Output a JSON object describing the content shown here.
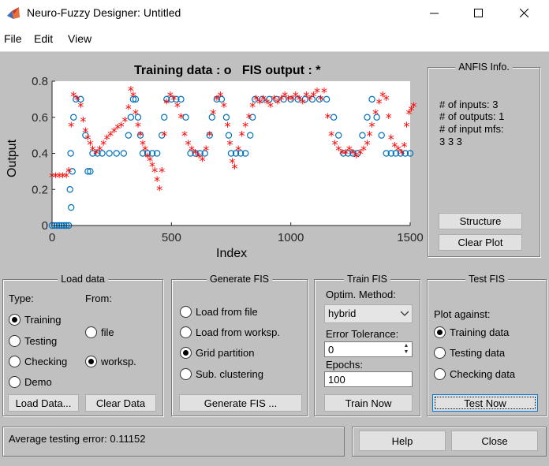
{
  "window": {
    "title": "Neuro-Fuzzy Designer: Untitled",
    "minimize": "—",
    "maximize": "☐",
    "close": "✕"
  },
  "menu": {
    "file": "File",
    "edit": "Edit",
    "view": "View"
  },
  "plot": {
    "title_training": "Training data : o",
    "title_fis": "FIS output : *",
    "xlabel": "Index",
    "ylabel": "Output"
  },
  "chart_data": {
    "type": "scatter",
    "title": "Training data : o   FIS output : *",
    "xlabel": "Index",
    "ylabel": "Output",
    "xlim": [
      0,
      1500
    ],
    "ylim": [
      0,
      0.8
    ],
    "xticks": [
      "0",
      "500",
      "1000",
      "1500"
    ],
    "yticks": [
      "0",
      "0.2",
      "0.4",
      "0.6",
      "0.8"
    ],
    "series": [
      {
        "name": "Training data",
        "marker": "o",
        "color": "#0072bd",
        "points": [
          [
            0,
            0
          ],
          [
            10,
            0
          ],
          [
            20,
            0
          ],
          [
            30,
            0
          ],
          [
            40,
            0
          ],
          [
            50,
            0
          ],
          [
            60,
            0
          ],
          [
            70,
            0
          ],
          [
            80,
            0.1
          ],
          [
            75,
            0.2
          ],
          [
            85,
            0.3
          ],
          [
            78,
            0.4
          ],
          [
            90,
            0.6
          ],
          [
            100,
            0.7
          ],
          [
            120,
            0.7
          ],
          [
            140,
            0.5
          ],
          [
            150,
            0.3
          ],
          [
            160,
            0.3
          ],
          [
            170,
            0.4
          ],
          [
            190,
            0.4
          ],
          [
            210,
            0.4
          ],
          [
            240,
            0.4
          ],
          [
            270,
            0.4
          ],
          [
            300,
            0.4
          ],
          [
            320,
            0.5
          ],
          [
            330,
            0.6
          ],
          [
            340,
            0.7
          ],
          [
            350,
            0.7
          ],
          [
            360,
            0.6
          ],
          [
            370,
            0.5
          ],
          [
            380,
            0.4
          ],
          [
            400,
            0.4
          ],
          [
            420,
            0.4
          ],
          [
            440,
            0.4
          ],
          [
            460,
            0.5
          ],
          [
            470,
            0.6
          ],
          [
            480,
            0.7
          ],
          [
            500,
            0.7
          ],
          [
            520,
            0.7
          ],
          [
            540,
            0.7
          ],
          [
            560,
            0.6
          ],
          [
            580,
            0.4
          ],
          [
            600,
            0.4
          ],
          [
            620,
            0.4
          ],
          [
            640,
            0.4
          ],
          [
            660,
            0.5
          ],
          [
            670,
            0.6
          ],
          [
            690,
            0.7
          ],
          [
            710,
            0.7
          ],
          [
            730,
            0.6
          ],
          [
            740,
            0.5
          ],
          [
            750,
            0.4
          ],
          [
            770,
            0.4
          ],
          [
            790,
            0.4
          ],
          [
            810,
            0.4
          ],
          [
            830,
            0.5
          ],
          [
            840,
            0.6
          ],
          [
            850,
            0.7
          ],
          [
            880,
            0.7
          ],
          [
            910,
            0.7
          ],
          [
            940,
            0.7
          ],
          [
            970,
            0.7
          ],
          [
            1000,
            0.7
          ],
          [
            1030,
            0.7
          ],
          [
            1060,
            0.7
          ],
          [
            1090,
            0.7
          ],
          [
            1120,
            0.7
          ],
          [
            1150,
            0.7
          ],
          [
            1180,
            0.6
          ],
          [
            1200,
            0.5
          ],
          [
            1220,
            0.4
          ],
          [
            1240,
            0.4
          ],
          [
            1260,
            0.4
          ],
          [
            1280,
            0.4
          ],
          [
            1300,
            0.5
          ],
          [
            1320,
            0.6
          ],
          [
            1340,
            0.7
          ],
          [
            1360,
            0.6
          ],
          [
            1380,
            0.5
          ],
          [
            1400,
            0.4
          ],
          [
            1420,
            0.4
          ],
          [
            1440,
            0.4
          ],
          [
            1460,
            0.4
          ],
          [
            1480,
            0.4
          ],
          [
            1500,
            0.4
          ]
        ]
      },
      {
        "name": "FIS output",
        "marker": "*",
        "color": "#ff0000",
        "points": [
          [
            0,
            0.27
          ],
          [
            15,
            0.27
          ],
          [
            30,
            0.27
          ],
          [
            45,
            0.27
          ],
          [
            60,
            0.27
          ],
          [
            70,
            0.3
          ],
          [
            80,
            0.55
          ],
          [
            90,
            0.72
          ],
          [
            105,
            0.7
          ],
          [
            120,
            0.66
          ],
          [
            130,
            0.58
          ],
          [
            140,
            0.52
          ],
          [
            150,
            0.48
          ],
          [
            160,
            0.45
          ],
          [
            170,
            0.42
          ],
          [
            185,
            0.4
          ],
          [
            200,
            0.42
          ],
          [
            215,
            0.45
          ],
          [
            230,
            0.48
          ],
          [
            245,
            0.5
          ],
          [
            260,
            0.52
          ],
          [
            275,
            0.54
          ],
          [
            290,
            0.55
          ],
          [
            305,
            0.58
          ],
          [
            320,
            0.65
          ],
          [
            330,
            0.75
          ],
          [
            340,
            0.72
          ],
          [
            350,
            0.62
          ],
          [
            360,
            0.55
          ],
          [
            370,
            0.5
          ],
          [
            380,
            0.45
          ],
          [
            390,
            0.42
          ],
          [
            400,
            0.38
          ],
          [
            410,
            0.36
          ],
          [
            420,
            0.33
          ],
          [
            430,
            0.3
          ],
          [
            440,
            0.25
          ],
          [
            450,
            0.2
          ],
          [
            460,
            0.3
          ],
          [
            470,
            0.5
          ],
          [
            480,
            0.68
          ],
          [
            495,
            0.72
          ],
          [
            510,
            0.7
          ],
          [
            525,
            0.66
          ],
          [
            540,
            0.6
          ],
          [
            555,
            0.5
          ],
          [
            570,
            0.45
          ],
          [
            585,
            0.42
          ],
          [
            600,
            0.4
          ],
          [
            615,
            0.38
          ],
          [
            630,
            0.36
          ],
          [
            645,
            0.42
          ],
          [
            660,
            0.5
          ],
          [
            675,
            0.62
          ],
          [
            690,
            0.7
          ],
          [
            705,
            0.72
          ],
          [
            720,
            0.66
          ],
          [
            735,
            0.55
          ],
          [
            745,
            0.45
          ],
          [
            755,
            0.35
          ],
          [
            765,
            0.32
          ],
          [
            780,
            0.42
          ],
          [
            795,
            0.5
          ],
          [
            810,
            0.55
          ],
          [
            825,
            0.6
          ],
          [
            840,
            0.66
          ],
          [
            855,
            0.7
          ],
          [
            870,
            0.68
          ],
          [
            885,
            0.7
          ],
          [
            900,
            0.68
          ],
          [
            915,
            0.66
          ],
          [
            930,
            0.7
          ],
          [
            945,
            0.68
          ],
          [
            960,
            0.7
          ],
          [
            975,
            0.72
          ],
          [
            990,
            0.7
          ],
          [
            1005,
            0.7
          ],
          [
            1020,
            0.72
          ],
          [
            1035,
            0.7
          ],
          [
            1050,
            0.68
          ],
          [
            1065,
            0.72
          ],
          [
            1080,
            0.7
          ],
          [
            1095,
            0.72
          ],
          [
            1110,
            0.74
          ],
          [
            1125,
            0.7
          ],
          [
            1140,
            0.74
          ],
          [
            1155,
            0.6
          ],
          [
            1170,
            0.5
          ],
          [
            1185,
            0.45
          ],
          [
            1200,
            0.42
          ],
          [
            1215,
            0.4
          ],
          [
            1230,
            0.4
          ],
          [
            1245,
            0.42
          ],
          [
            1260,
            0.4
          ],
          [
            1275,
            0.38
          ],
          [
            1290,
            0.4
          ],
          [
            1305,
            0.42
          ],
          [
            1320,
            0.45
          ],
          [
            1330,
            0.5
          ],
          [
            1340,
            0.55
          ],
          [
            1355,
            0.62
          ],
          [
            1370,
            0.68
          ],
          [
            1385,
            0.72
          ],
          [
            1400,
            0.7
          ],
          [
            1410,
            0.6
          ],
          [
            1420,
            0.48
          ],
          [
            1435,
            0.44
          ],
          [
            1450,
            0.42
          ],
          [
            1465,
            0.4
          ],
          [
            1475,
            0.44
          ],
          [
            1485,
            0.55
          ],
          [
            1495,
            0.62
          ],
          [
            1505,
            0.64
          ],
          [
            1515,
            0.66
          ]
        ]
      }
    ],
    "grid": false
  },
  "anfis": {
    "title": "ANFIS Info.",
    "inputs": "# of inputs: 3",
    "outputs": "# of outputs: 1",
    "mfs": "# of input mfs:",
    "mfs_values": "3  3  3",
    "structure_btn": "Structure",
    "clear_btn": "Clear Plot"
  },
  "load": {
    "title": "Load data",
    "type_label": "Type:",
    "from_label": "From:",
    "types": [
      {
        "label": "Training",
        "checked": true
      },
      {
        "label": "Testing",
        "checked": false
      },
      {
        "label": "Checking",
        "checked": false
      },
      {
        "label": "Demo",
        "checked": false
      }
    ],
    "froms": [
      {
        "label": "file",
        "checked": false
      },
      {
        "label": "worksp.",
        "checked": true
      }
    ],
    "load_btn": "Load Data...",
    "clear_btn": "Clear Data"
  },
  "generate": {
    "title": "Generate FIS",
    "options": [
      {
        "label": "Load from file",
        "checked": false
      },
      {
        "label": "Load from worksp.",
        "checked": false
      },
      {
        "label": "Grid partition",
        "checked": true
      },
      {
        "label": "Sub. clustering",
        "checked": false
      }
    ],
    "btn": "Generate FIS ..."
  },
  "train": {
    "title": "Train FIS",
    "method_label": "Optim. Method:",
    "method_value": "hybrid",
    "error_label": "Error Tolerance:",
    "error_value": "0",
    "epochs_label": "Epochs:",
    "epochs_value": "100",
    "btn": "Train Now"
  },
  "test": {
    "title": "Test FIS",
    "plot_label": "Plot against:",
    "options": [
      {
        "label": "Training data",
        "checked": true
      },
      {
        "label": "Testing data",
        "checked": false
      },
      {
        "label": "Checking data",
        "checked": false
      }
    ],
    "btn": "Test Now"
  },
  "status": {
    "text": "Average testing error: 0.11152"
  },
  "footer": {
    "help": "Help",
    "close": "Close"
  }
}
